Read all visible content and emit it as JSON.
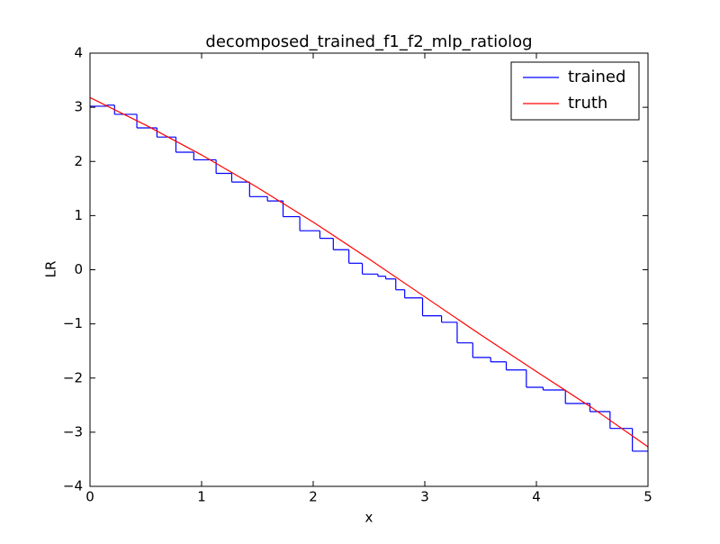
{
  "chart_data": {
    "type": "line",
    "title": "decomposed_trained_f1_f2_mlp_ratiolog",
    "xlabel": "x",
    "ylabel": "LR",
    "xlim": [
      0,
      5
    ],
    "xticks": [
      0,
      1,
      2,
      3,
      4,
      5
    ],
    "ylim": [
      -4,
      4
    ],
    "yticks": [
      {
        "value": -4,
        "label": "−4"
      },
      {
        "value": -3,
        "label": "−3"
      },
      {
        "value": -2,
        "label": "−2"
      },
      {
        "value": -1,
        "label": "−1"
      },
      0,
      1,
      2,
      3,
      4
    ],
    "legend": "upper right",
    "series": [
      {
        "name": "trained",
        "color": "#0000ff",
        "drawstyle": "steps-post",
        "x": [
          0,
          0.15,
          0.22,
          0.42,
          0.6,
          0.77,
          0.93,
          1.13,
          1.27,
          1.43,
          1.59,
          1.73,
          1.88,
          2.06,
          2.18,
          2.32,
          2.44,
          2.58,
          2.65,
          2.74,
          2.82,
          2.98,
          3.15,
          3.29,
          3.43,
          3.59,
          3.73,
          3.91,
          4.06,
          4.26,
          4.48,
          4.66,
          4.86,
          5
        ],
        "values": [
          3.02,
          3.04,
          2.87,
          2.62,
          2.45,
          2.17,
          2.03,
          1.78,
          1.62,
          1.35,
          1.27,
          0.98,
          0.72,
          0.58,
          0.37,
          0.12,
          -0.08,
          -0.12,
          -0.17,
          -0.37,
          -0.52,
          -0.85,
          -0.97,
          -1.35,
          -1.62,
          -1.7,
          -1.85,
          -2.17,
          -2.22,
          -2.47,
          -2.62,
          -2.93,
          -3.35,
          -3.35
        ]
      },
      {
        "name": "truth",
        "color": "#ff0000",
        "drawstyle": "default",
        "x": [
          0,
          0.5,
          1,
          1.5,
          2,
          2.5,
          3,
          3.5,
          4,
          4.5,
          5
        ],
        "values": [
          3.18,
          2.67,
          2.12,
          1.52,
          0.88,
          0.2,
          -0.5,
          -1.2,
          -1.88,
          -2.55,
          -3.27
        ]
      }
    ]
  }
}
